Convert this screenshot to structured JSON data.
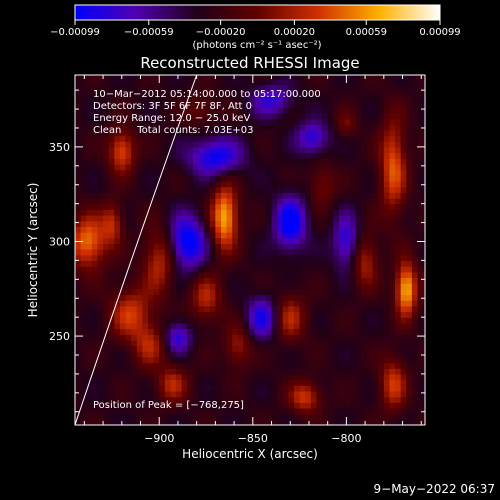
{
  "chart_data": {
    "type": "heatmap",
    "title": "Reconstructed RHESSI Image",
    "xlabel": "Heliocentric X (arcsec)",
    "ylabel": "Heliocentric Y (arcsec)",
    "xlim": [
      -945,
      -758
    ],
    "ylim": [
      203,
      388
    ],
    "x_ticks": [
      -900,
      -850,
      -800
    ],
    "x_tick_labels": [
      "−900",
      "−850",
      "−800"
    ],
    "y_ticks": [
      250,
      300,
      350
    ],
    "y_tick_labels": [
      "250",
      "300",
      "350"
    ],
    "colorbar": {
      "range": [
        -0.00099,
        0.00099
      ],
      "ticks": [
        -0.00099,
        -0.00059,
        -0.0002,
        0.0002,
        0.00059,
        0.00099
      ],
      "tick_labels": [
        "−0.00099",
        "−0.00059",
        "−0.00020",
        "0.00020",
        "0.00059",
        "0.00099"
      ],
      "unit_label": "(photons cm⁻² s⁻¹ asec⁻²)",
      "colors": [
        "#0000ff",
        "#5000b0",
        "#200018",
        "#600000",
        "#d03000",
        "#ffb000",
        "#ffffff"
      ]
    },
    "info_lines": [
      "10−Mar−2012 05:14:00.000 to 05:17:00.000",
      "Detectors: 3F 5F 6F 7F 8F, Att 0",
      "Energy Range: 12.0 − 25.0 keV",
      "Clean     Total counts: 7.03E+03"
    ],
    "peak_label": "Position of Peak = [−768,275]",
    "peak": [
      -768,
      275
    ],
    "limb_arc": [
      [
        -945,
        203
      ],
      [
        -912,
        300
      ],
      [
        -880,
        388
      ]
    ],
    "blobs": [
      {
        "x": -938,
        "y": 300,
        "v": 0.0008,
        "sx": 7,
        "sy": 10
      },
      {
        "x": -920,
        "y": 348,
        "v": 0.0007,
        "sx": 5,
        "sy": 8
      },
      {
        "x": -925,
        "y": 310,
        "v": 0.0005,
        "sx": 4,
        "sy": 8
      },
      {
        "x": -900,
        "y": 290,
        "v": 0.00055,
        "sx": 6,
        "sy": 12
      },
      {
        "x": -915,
        "y": 262,
        "v": 0.0006,
        "sx": 8,
        "sy": 10
      },
      {
        "x": -905,
        "y": 245,
        "v": 0.00045,
        "sx": 6,
        "sy": 8
      },
      {
        "x": -893,
        "y": 225,
        "v": 0.0005,
        "sx": 6,
        "sy": 7
      },
      {
        "x": -865,
        "y": 313,
        "v": 0.00095,
        "sx": 5,
        "sy": 12
      },
      {
        "x": -875,
        "y": 270,
        "v": 0.0005,
        "sx": 6,
        "sy": 9
      },
      {
        "x": -858,
        "y": 245,
        "v": 0.00045,
        "sx": 5,
        "sy": 8
      },
      {
        "x": -830,
        "y": 260,
        "v": 0.0005,
        "sx": 6,
        "sy": 9
      },
      {
        "x": -822,
        "y": 218,
        "v": 0.0006,
        "sx": 6,
        "sy": 6
      },
      {
        "x": -813,
        "y": 330,
        "v": 0.00035,
        "sx": 5,
        "sy": 8
      },
      {
        "x": -790,
        "y": 290,
        "v": 0.0005,
        "sx": 5,
        "sy": 10
      },
      {
        "x": -775,
        "y": 340,
        "v": 0.0007,
        "sx": 5,
        "sy": 18
      },
      {
        "x": -768,
        "y": 275,
        "v": 0.00099,
        "sx": 4,
        "sy": 10
      },
      {
        "x": -775,
        "y": 225,
        "v": 0.0006,
        "sx": 5,
        "sy": 10
      },
      {
        "x": -800,
        "y": 362,
        "v": 0.0003,
        "sx": 4,
        "sy": 5
      },
      {
        "x": -878,
        "y": 370,
        "v": 0.0003,
        "sx": 6,
        "sy": 6
      },
      {
        "x": -885,
        "y": 300,
        "v": -0.0008,
        "sx": 7,
        "sy": 10
      },
      {
        "x": -870,
        "y": 345,
        "v": -0.0007,
        "sx": 10,
        "sy": 7
      },
      {
        "x": -840,
        "y": 375,
        "v": -0.0005,
        "sx": 8,
        "sy": 6
      },
      {
        "x": -830,
        "y": 310,
        "v": -0.0008,
        "sx": 6,
        "sy": 10
      },
      {
        "x": -800,
        "y": 300,
        "v": -0.0006,
        "sx": 5,
        "sy": 10
      },
      {
        "x": -845,
        "y": 260,
        "v": -0.0006,
        "sx": 6,
        "sy": 8
      },
      {
        "x": -890,
        "y": 250,
        "v": -0.00055,
        "sx": 5,
        "sy": 6
      },
      {
        "x": -818,
        "y": 355,
        "v": -0.0006,
        "sx": 6,
        "sy": 6
      }
    ]
  },
  "timestamp": "9−May−2022 06:37"
}
